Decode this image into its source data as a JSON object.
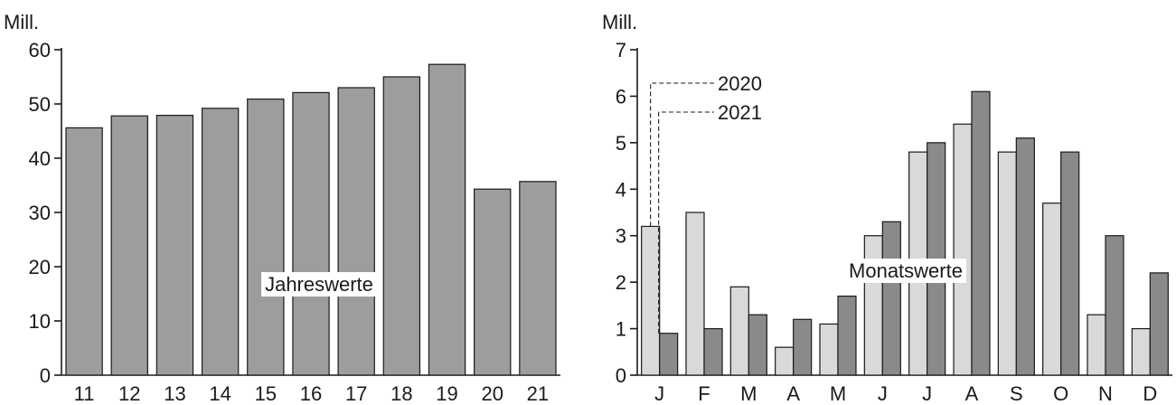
{
  "chart_data": [
    {
      "type": "bar",
      "unit_label": "Mill.",
      "annotation": "Jahreswerte",
      "categories": [
        "11",
        "12",
        "13",
        "14",
        "15",
        "16",
        "17",
        "18",
        "19",
        "20",
        "21"
      ],
      "values": [
        45.6,
        47.8,
        47.9,
        49.2,
        50.9,
        52.1,
        53.0,
        55.0,
        57.3,
        34.3,
        35.7
      ],
      "ylim": [
        0,
        60
      ],
      "yticks": [
        0,
        10,
        20,
        30,
        40,
        50,
        60
      ],
      "colors": {
        "bar": "#9d9d9d",
        "outline": "#1a1a1a"
      }
    },
    {
      "type": "bar",
      "unit_label": "Mill.",
      "annotation": "Monatswerte",
      "categories": [
        "J",
        "F",
        "M",
        "A",
        "M",
        "J",
        "J",
        "A",
        "S",
        "O",
        "N",
        "D"
      ],
      "series": [
        {
          "name": "2020",
          "values": [
            3.2,
            3.5,
            1.9,
            0.6,
            1.1,
            3.0,
            4.8,
            5.4,
            4.8,
            3.7,
            1.3,
            1.0
          ],
          "color": "#d9d9d9"
        },
        {
          "name": "2021",
          "values": [
            0.9,
            1.0,
            1.3,
            1.2,
            1.7,
            3.3,
            5.0,
            6.1,
            5.1,
            4.8,
            3.0,
            2.2
          ],
          "color": "#8a8a8a"
        }
      ],
      "ylim": [
        0,
        7
      ],
      "yticks": [
        0,
        1,
        2,
        3,
        4,
        5,
        6,
        7
      ],
      "colors": {
        "outline": "#1a1a1a"
      }
    }
  ]
}
